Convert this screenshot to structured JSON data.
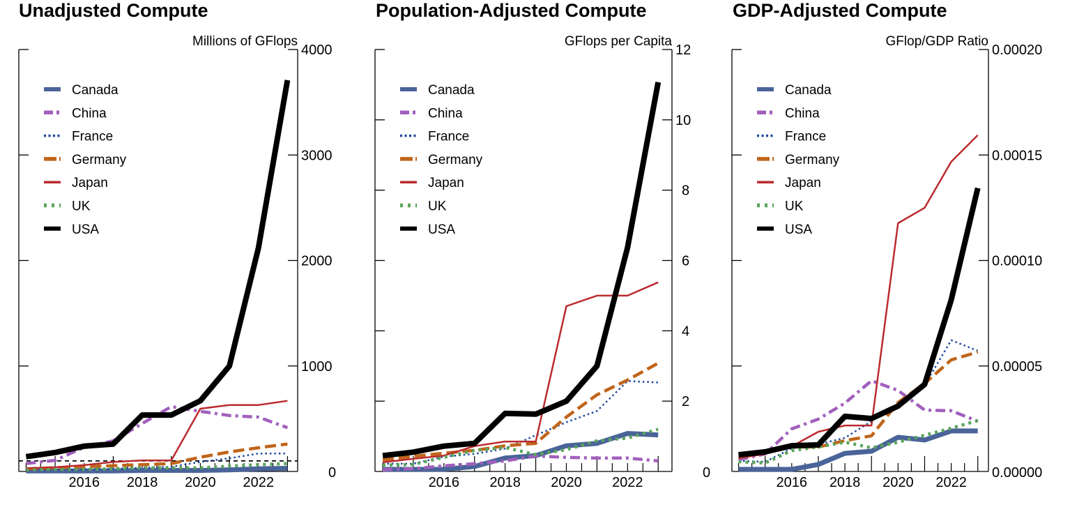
{
  "chart_data": [
    {
      "type": "line",
      "title": "Unadjusted Compute",
      "ylabel": "Millions of GFlops",
      "xlabel": "",
      "x": [
        2014,
        2015,
        2016,
        2017,
        2018,
        2019,
        2020,
        2021,
        2022,
        2023
      ],
      "xlim": [
        2013.75,
        2023.35
      ],
      "xticks": [
        2016,
        2018,
        2020,
        2022
      ],
      "ylim": [
        0,
        4000
      ],
      "yticks": [
        0,
        1000,
        2000,
        3000,
        4000
      ],
      "ytick_labels": [
        "0",
        "1000",
        "2000",
        "3000",
        "4000"
      ],
      "y_axis_side": "right",
      "grid": false,
      "legend_position": "top-left",
      "reference_line": {
        "y": 100,
        "style": "dashed",
        "color": "#000000"
      },
      "series": [
        {
          "name": "Canada",
          "color": "#4a6499",
          "style": "solid",
          "width": "thick",
          "values": [
            5,
            5,
            5,
            5,
            10,
            10,
            10,
            15,
            25,
            30
          ]
        },
        {
          "name": "China",
          "color": "#a160bd",
          "style": "dashdot",
          "width": "medium",
          "values": [
            75,
            105,
            230,
            290,
            455,
            615,
            570,
            530,
            515,
            415
          ]
        },
        {
          "name": "France",
          "color": "#1a47a0",
          "style": "dotted",
          "width": "thin",
          "values": [
            15,
            15,
            20,
            25,
            35,
            45,
            90,
            125,
            170,
            170
          ]
        },
        {
          "name": "Germany",
          "color": "#c0651a",
          "style": "longdash",
          "width": "medium",
          "values": [
            25,
            35,
            45,
            55,
            65,
            75,
            135,
            185,
            225,
            260
          ]
        },
        {
          "name": "Japan",
          "color": "#bb2a2e",
          "style": "solid",
          "width": "thin",
          "values": [
            30,
            40,
            60,
            90,
            105,
            105,
            595,
            630,
            630,
            670
          ]
        },
        {
          "name": "UK",
          "color": "#5aa55a",
          "style": "dotted",
          "width": "medium",
          "values": [
            15,
            20,
            20,
            25,
            35,
            35,
            35,
            50,
            65,
            75
          ]
        },
        {
          "name": "USA",
          "color": "#000000",
          "style": "solid",
          "width": "heavy",
          "values": [
            140,
            180,
            240,
            260,
            535,
            535,
            670,
            1000,
            2120,
            3710
          ]
        }
      ]
    },
    {
      "type": "line",
      "title": "Population-Adjusted Compute",
      "ylabel": "GFlops per Capita",
      "xlabel": "",
      "x": [
        2014,
        2015,
        2016,
        2017,
        2018,
        2019,
        2020,
        2021,
        2022,
        2023
      ],
      "xlim": [
        2013.75,
        2023.45
      ],
      "xticks": [
        2016,
        2018,
        2020,
        2022
      ],
      "ylim": [
        0,
        12
      ],
      "yticks": [
        0,
        2,
        4,
        6,
        8,
        10,
        12
      ],
      "ytick_labels": [
        "0",
        "2",
        "4",
        "6",
        "8",
        "10",
        "12"
      ],
      "y_axis_side": "right",
      "grid": false,
      "legend_position": "top-left",
      "series": [
        {
          "name": "Canada",
          "color": "#4a6499",
          "style": "solid",
          "width": "thick",
          "values": [
            0.06,
            0.06,
            0.06,
            0.14,
            0.38,
            0.45,
            0.73,
            0.8,
            1.08,
            1.04
          ]
        },
        {
          "name": "China",
          "color": "#a160bd",
          "style": "dashdot",
          "width": "medium",
          "values": [
            0.05,
            0.08,
            0.16,
            0.22,
            0.3,
            0.44,
            0.4,
            0.38,
            0.38,
            0.3
          ]
        },
        {
          "name": "France",
          "color": "#1a47a0",
          "style": "dotted",
          "width": "thin",
          "values": [
            0.22,
            0.22,
            0.42,
            0.5,
            0.65,
            1.03,
            1.4,
            1.72,
            2.57,
            2.53
          ]
        },
        {
          "name": "Germany",
          "color": "#c0651a",
          "style": "longdash",
          "width": "medium",
          "values": [
            0.33,
            0.43,
            0.52,
            0.6,
            0.73,
            0.8,
            1.55,
            2.18,
            2.6,
            3.08
          ]
        },
        {
          "name": "Japan",
          "color": "#bb2a2e",
          "style": "solid",
          "width": "thin",
          "values": [
            0.26,
            0.36,
            0.45,
            0.72,
            0.85,
            0.85,
            4.7,
            5.0,
            5.0,
            5.38
          ]
        },
        {
          "name": "UK",
          "color": "#5aa55a",
          "style": "dotted",
          "width": "medium",
          "values": [
            0.18,
            0.2,
            0.4,
            0.6,
            0.68,
            0.48,
            0.62,
            0.87,
            0.95,
            1.2
          ]
        },
        {
          "name": "USA",
          "color": "#000000",
          "style": "solid",
          "width": "heavy",
          "values": [
            0.45,
            0.55,
            0.72,
            0.8,
            1.65,
            1.63,
            2.0,
            3.0,
            6.37,
            11.07
          ]
        }
      ]
    },
    {
      "type": "line",
      "title": "GDP-Adjusted Compute",
      "ylabel": "GFlop/GDP Ratio",
      "xlabel": "",
      "x": [
        2014,
        2015,
        2016,
        2017,
        2018,
        2019,
        2020,
        2021,
        2022,
        2023
      ],
      "xlim": [
        2013.75,
        2023.4
      ],
      "xticks": [
        2016,
        2018,
        2020,
        2022
      ],
      "ylim": [
        0,
        0.0002
      ],
      "yticks": [
        0,
        5e-05,
        0.0001,
        0.00015,
        0.0002
      ],
      "ytick_labels": [
        "0.00000",
        "0.00005",
        "0.00010",
        "0.00015",
        "0.00020"
      ],
      "y_axis_side": "right",
      "grid": false,
      "legend_position": "top-left",
      "series": [
        {
          "name": "Canada",
          "color": "#4a6499",
          "style": "solid",
          "width": "thick",
          "values": [
            1e-06,
            1e-06,
            1e-06,
            3.3e-06,
            8.6e-06,
            9.6e-06,
            1.62e-05,
            1.49e-05,
            1.92e-05,
            1.92e-05
          ]
        },
        {
          "name": "China",
          "color": "#a160bd",
          "style": "dashdot",
          "width": "medium",
          "values": [
            5.6e-06,
            8.3e-06,
            2.02e-05,
            2.48e-05,
            3.24e-05,
            4.3e-05,
            3.84e-05,
            2.91e-05,
            2.88e-05,
            2.38e-05
          ]
        },
        {
          "name": "France",
          "color": "#1a47a0",
          "style": "dotted",
          "width": "thin",
          "values": [
            5e-06,
            4.6e-06,
            1.09e-05,
            1.29e-05,
            1.59e-05,
            2.38e-05,
            3.17e-05,
            4.1e-05,
            6.22e-05,
            5.72e-05
          ]
        },
        {
          "name": "Germany",
          "color": "#c0651a",
          "style": "longdash",
          "width": "medium",
          "values": [
            6.6e-06,
            8.9e-06,
            1.16e-05,
            1.16e-05,
            1.46e-05,
            1.69e-05,
            3.27e-05,
            4.17e-05,
            5.29e-05,
            5.66e-05
          ]
        },
        {
          "name": "Japan",
          "color": "#bb2a2e",
          "style": "solid",
          "width": "thin",
          "values": [
            6.3e-06,
            8.3e-06,
            1.19e-05,
            1.88e-05,
            2.18e-05,
            2.18e-05,
            0.0001177,
            0.000125,
            0.0001468,
            0.0001594
          ]
        },
        {
          "name": "UK",
          "color": "#5aa55a",
          "style": "dotted",
          "width": "medium",
          "values": [
            4.6e-06,
            4e-06,
            9.9e-06,
            1.16e-05,
            1.39e-05,
            1.12e-05,
            1.39e-05,
            1.72e-05,
            2.05e-05,
            2.41e-05
          ]
        },
        {
          "name": "USA",
          "color": "#000000",
          "style": "solid",
          "width": "heavy",
          "values": [
            7.9e-06,
            9.3e-06,
            1.22e-05,
            1.26e-05,
            2.61e-05,
            2.51e-05,
            3.1e-05,
            4.13e-05,
            8.13e-05,
            0.0001343
          ]
        }
      ]
    }
  ]
}
